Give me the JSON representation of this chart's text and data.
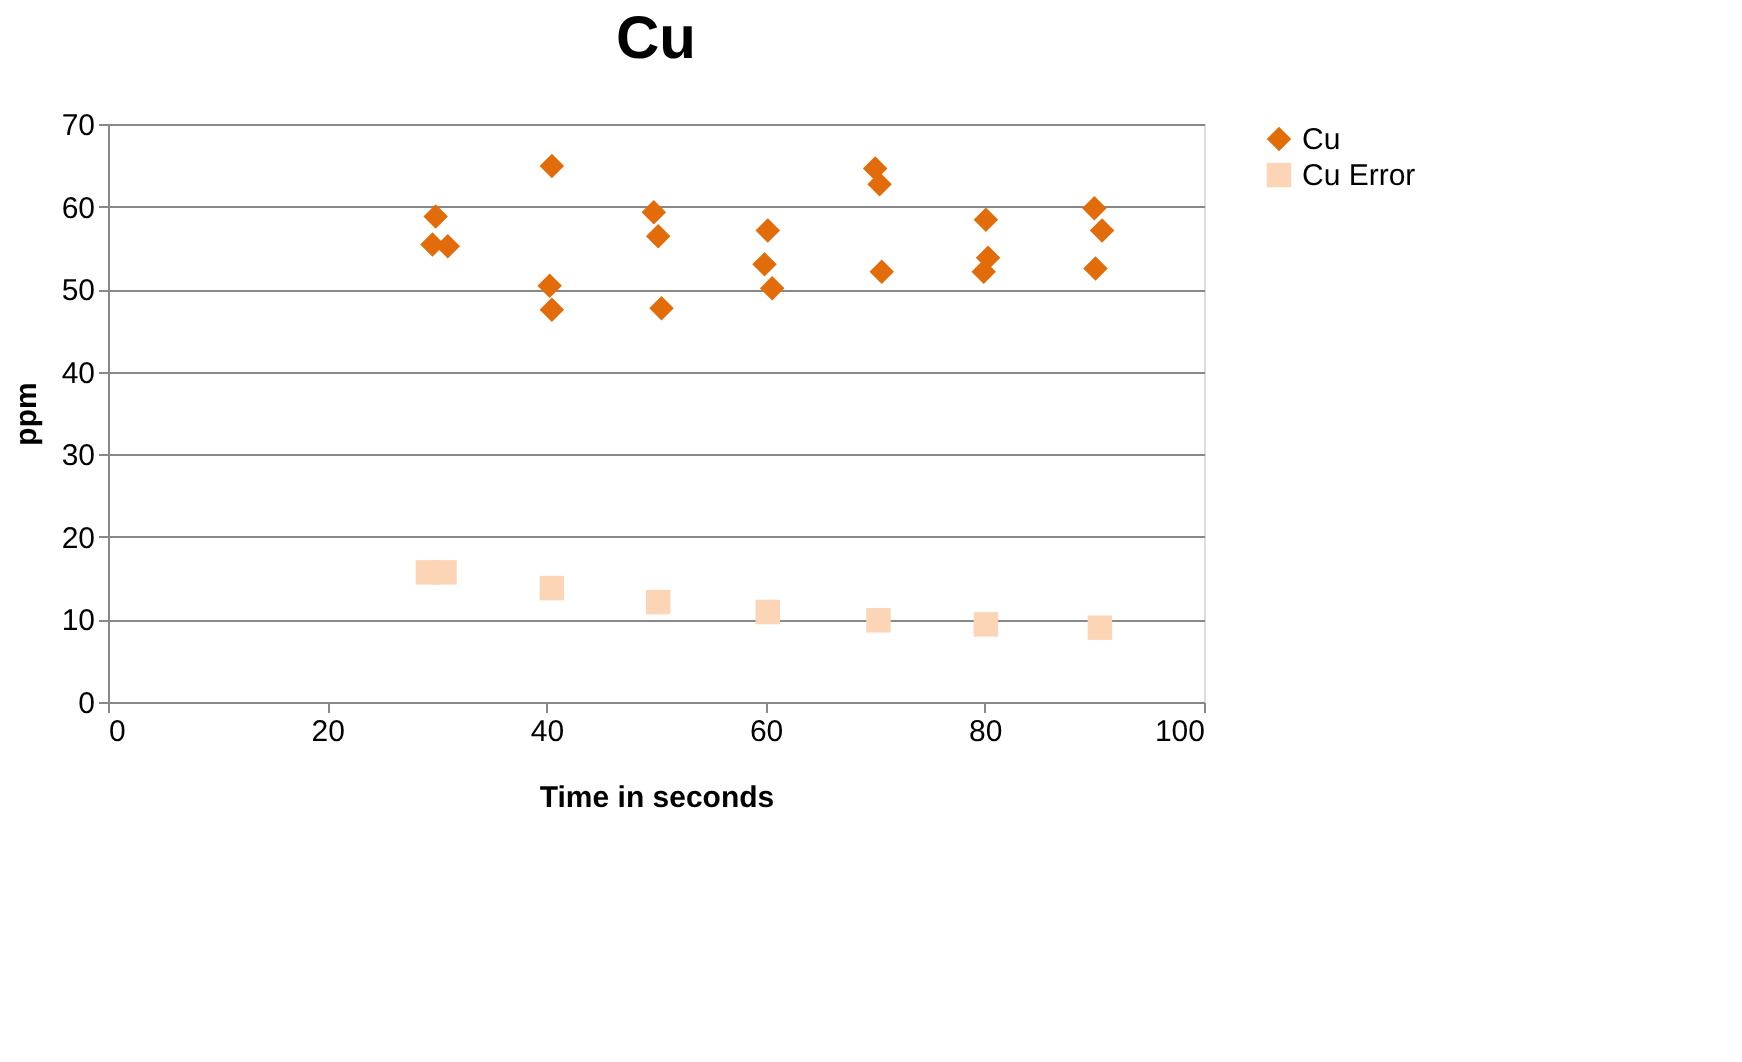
{
  "chart_data": {
    "type": "scatter",
    "title": "Cu",
    "xlabel": "Time in seconds",
    "ylabel": "ppm",
    "xlim": [
      0,
      100
    ],
    "xticks": [
      0,
      20,
      40,
      60,
      80,
      100
    ],
    "ylim": [
      0,
      70
    ],
    "yticks": [
      0,
      10,
      20,
      30,
      40,
      50,
      60,
      70
    ],
    "grid": "y",
    "legend": "right",
    "series": [
      {
        "name": "Cu",
        "color": "#e36c0a",
        "marker": "diamond",
        "x": [
          29.9,
          29.6,
          31,
          40.5,
          40.3,
          40.5,
          49.8,
          50.2,
          50.5,
          60.2,
          59.9,
          60.6,
          70,
          70.4,
          70.6,
          80.1,
          80.3,
          79.9,
          90,
          90.7,
          90.1
        ],
        "values": [
          58.8,
          55.4,
          55.2,
          64.9,
          50.4,
          47.5,
          59.3,
          56.4,
          47.7,
          57.1,
          53,
          50.1,
          64.6,
          62.7,
          52.1,
          58.4,
          53.8,
          52.1,
          59.8,
          57.1,
          52.5
        ]
      },
      {
        "name": "Cu Error",
        "color": "#fbd5b5",
        "marker": "square",
        "x": [
          29.2,
          30.7,
          40.5,
          50.2,
          60.2,
          70.3,
          80.1,
          90.5
        ],
        "values": [
          15.7,
          15.7,
          13.8,
          12.1,
          10.9,
          9.9,
          9.4,
          9.0
        ]
      }
    ]
  }
}
